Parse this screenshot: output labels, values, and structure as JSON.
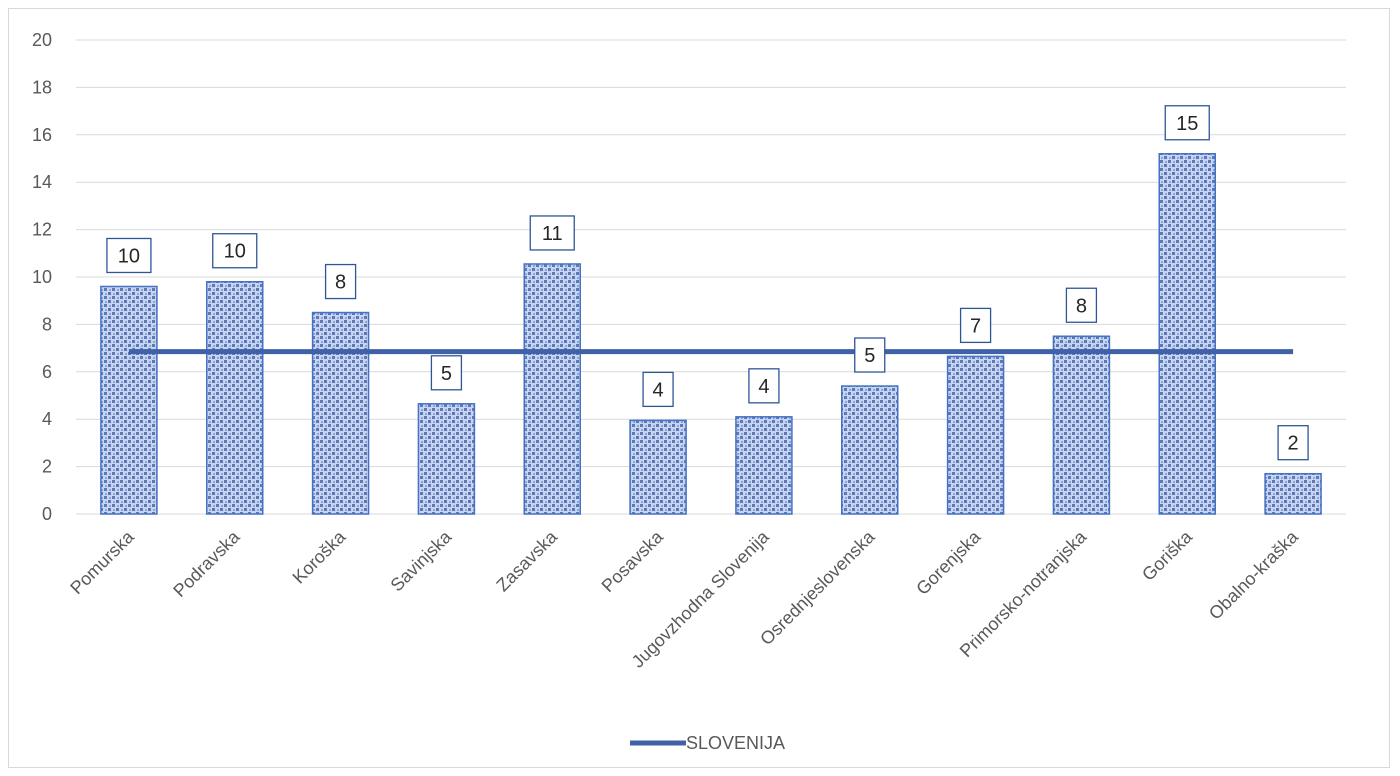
{
  "chart_data": {
    "type": "bar",
    "categories": [
      "Pomurska",
      "Podravska",
      "Koroška",
      "Savinjska",
      "Zasavska",
      "Posavska",
      "Jugovzhodna Slovenija",
      "Osrednjeslovenska",
      "Gorenjska",
      "Primorsko-notranjska",
      "Goriška",
      "Obalno-kraška"
    ],
    "values": [
      9.6,
      9.8,
      8.5,
      4.65,
      10.55,
      3.95,
      4.1,
      5.4,
      6.65,
      7.5,
      15.2,
      1.7
    ],
    "data_labels": [
      "10",
      "10",
      "8",
      "5",
      "11",
      "4",
      "4",
      "5",
      "7",
      "8",
      "15",
      "2"
    ],
    "reference_line": {
      "name": "SLOVENIJA",
      "value": 6.85
    },
    "ylim": [
      0,
      20
    ],
    "yticks": [
      "0",
      "2",
      "4",
      "6",
      "8",
      "10",
      "12",
      "14",
      "16",
      "18",
      "20"
    ],
    "grid": true,
    "legend_position": "bottom",
    "title": "",
    "xlabel": "",
    "ylabel": ""
  },
  "colors": {
    "bar_fill": "#b4c3e6",
    "bar_dot": "#4f6fb8",
    "bar_border": "#4472c4",
    "line": "#4060a8",
    "grid": "#d9d9d9",
    "label_border": "#2f5597"
  }
}
